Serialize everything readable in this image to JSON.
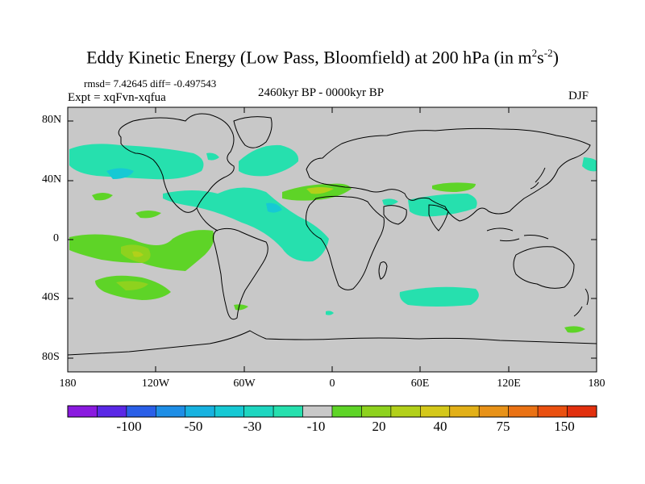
{
  "title": {
    "main": "Eddy Kinetic Energy (Low Pass, Bloomfield) at 200 hPa (in m",
    "exp1": "2",
    "mid": "s",
    "exp2": "-2",
    "close": ")"
  },
  "stats": "rmsd= 7.42645 diff= -0.497543",
  "experiment": "Expt = xqFvn-xqfua",
  "period": "2460kyr BP - 0000kyr BP",
  "season": "DJF",
  "y_ticks": [
    "80N",
    "40N",
    "0",
    "40S",
    "80S"
  ],
  "x_ticks": [
    "180",
    "120W",
    "60W",
    "0",
    "60E",
    "120E",
    "180"
  ],
  "colorbar": {
    "labels": [
      "-100",
      "-50",
      "-30",
      "-10",
      "20",
      "40",
      "75",
      "150"
    ],
    "colors": [
      "#8a1adf",
      "#5a28e6",
      "#2a5fe8",
      "#1e8ee6",
      "#17b2e0",
      "#16c9d4",
      "#1ed6c0",
      "#26e0ae",
      "#c8c8c8",
      "#5ed427",
      "#8ed21e",
      "#b2d01a",
      "#d4c81a",
      "#e2b018",
      "#e89218",
      "#ea7214",
      "#ea5010",
      "#e2300e"
    ]
  },
  "colors": {
    "land_ocean": "#c8c8c8",
    "coast": "#000000",
    "neg_small": "#26e0ae",
    "neg_med": "#16c9d4",
    "pos_small": "#5ed427",
    "pos_med": "#8ed21e",
    "pos_large": "#b2d01a"
  }
}
